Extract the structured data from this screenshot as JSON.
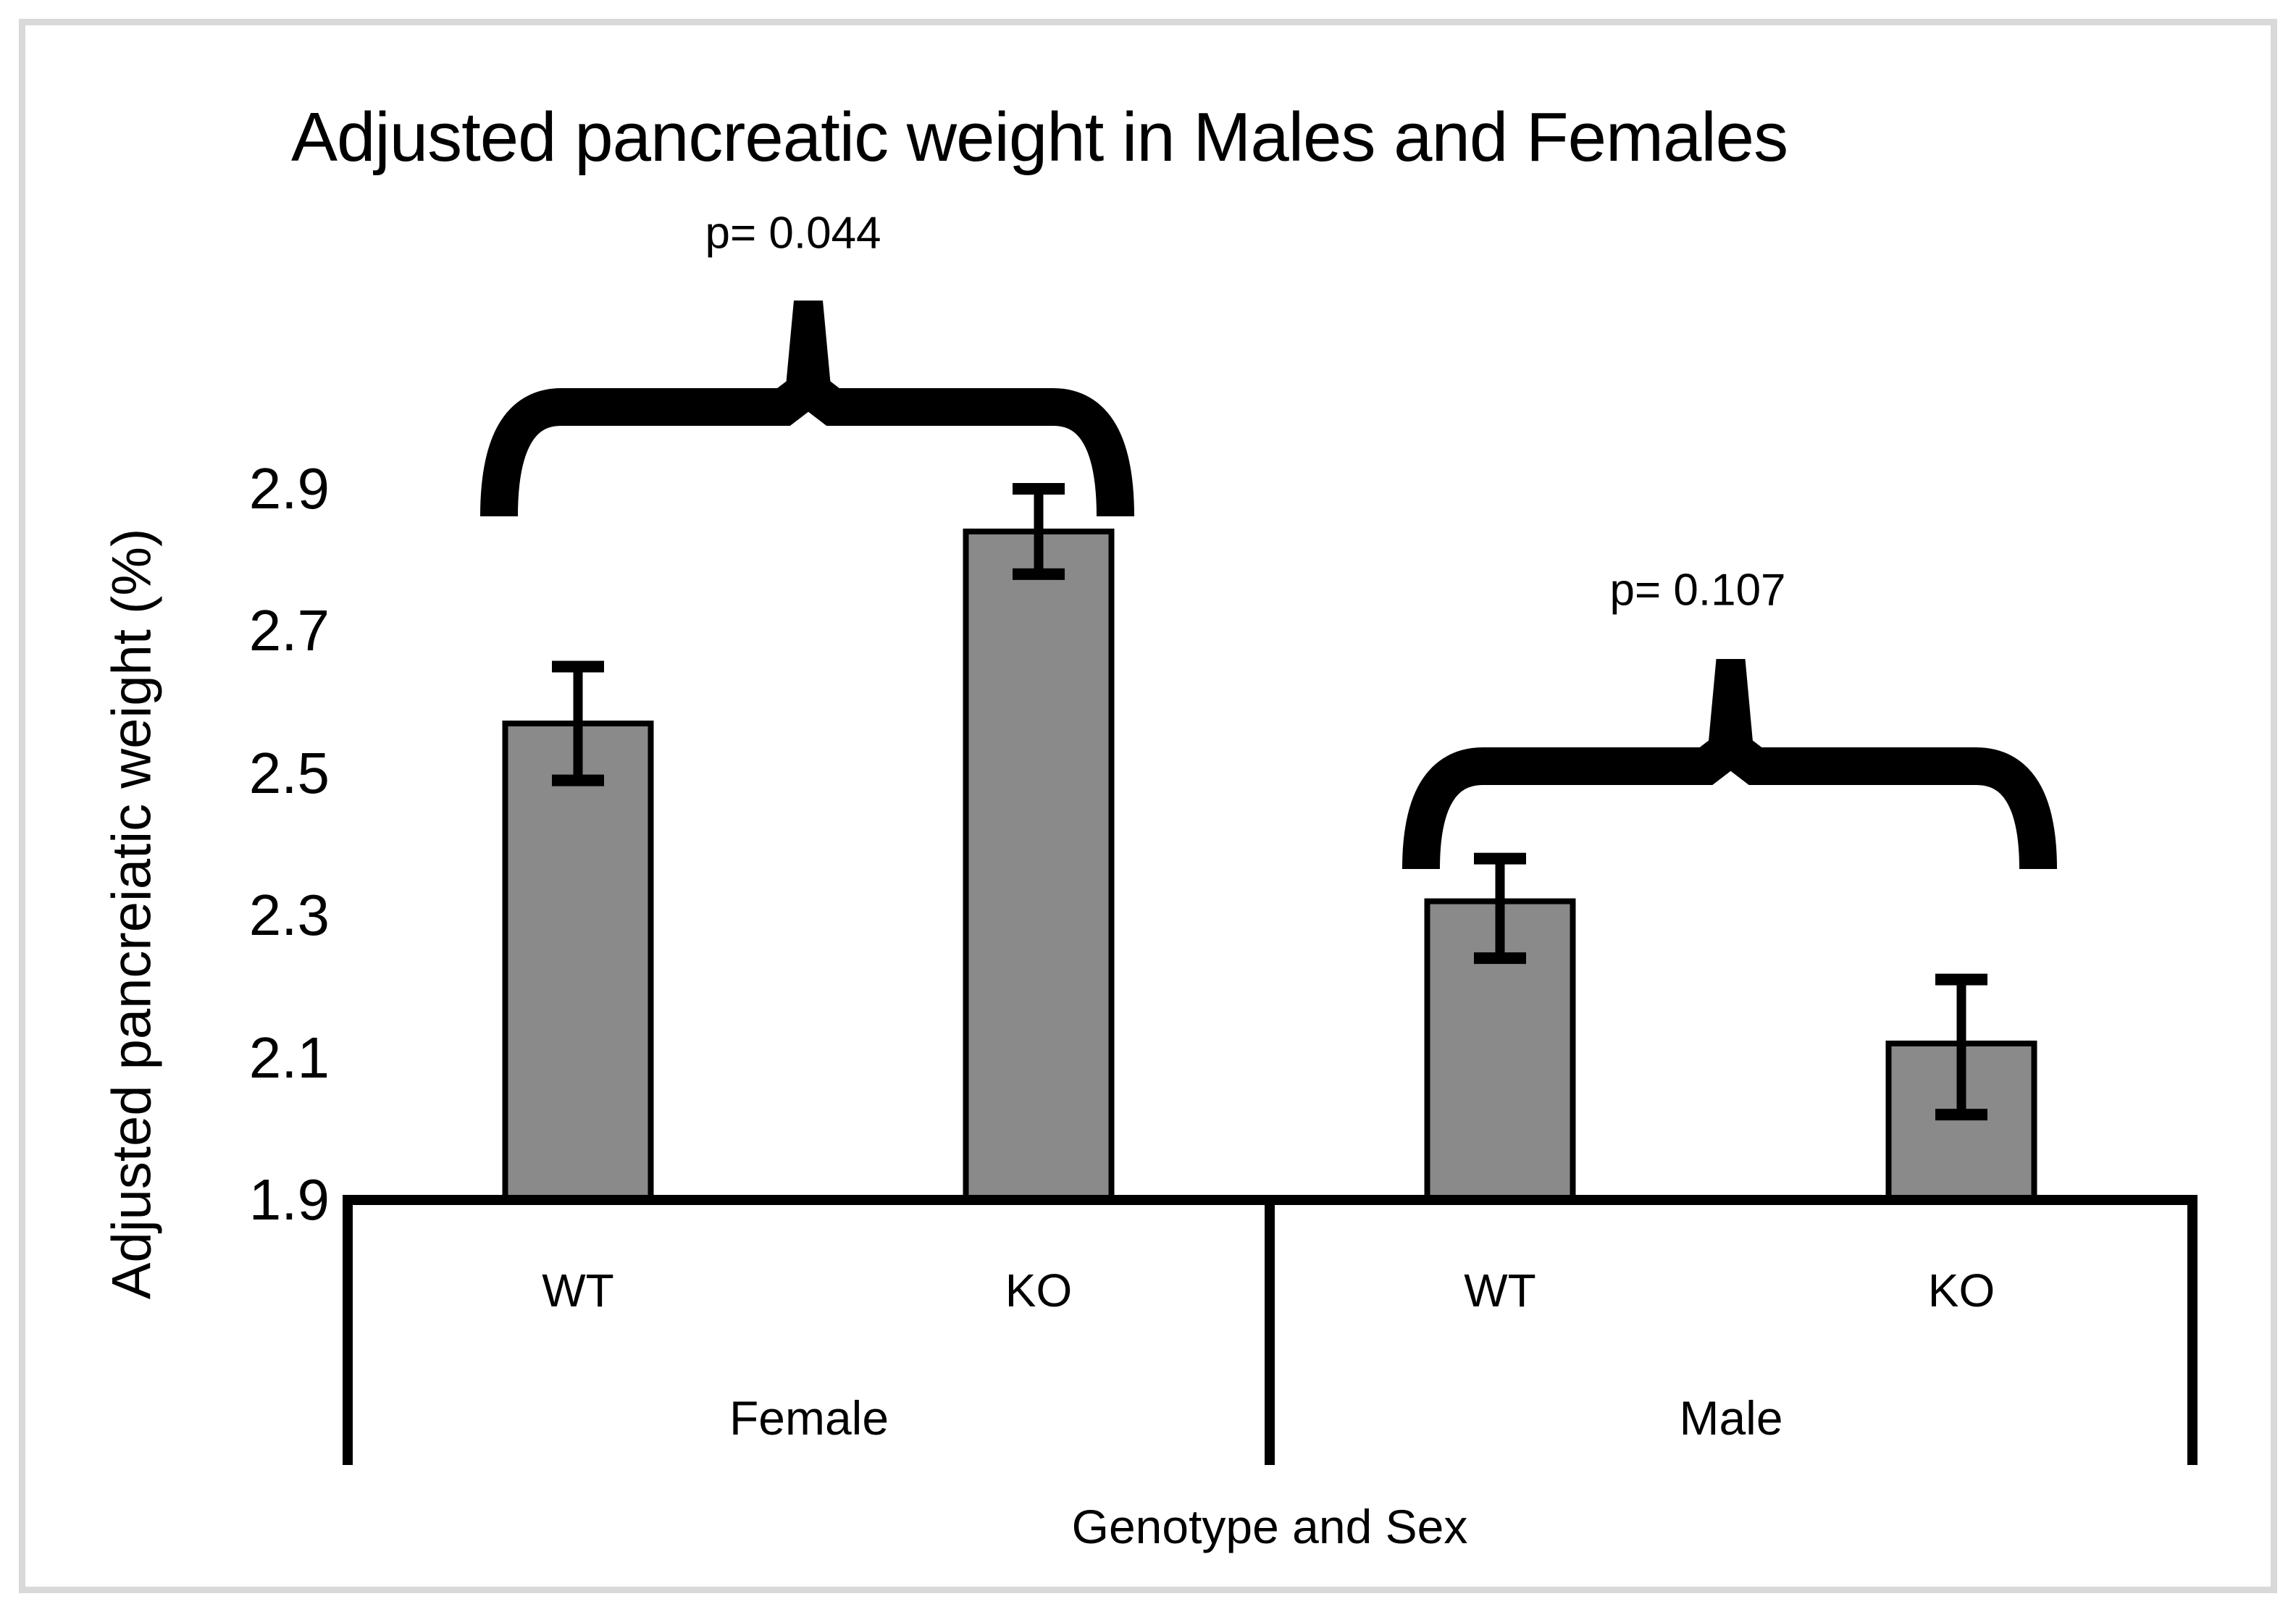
{
  "figure": {
    "background": "#ffffff",
    "border_color": "#d9d9d9"
  },
  "chart_data": {
    "type": "bar",
    "title": "Adjusted pancreatic weight in Males and Females",
    "xlabel": "Genotype and Sex",
    "ylabel": "Adjusted pancreiatic weight (%)",
    "ylim": [
      1.9,
      3.0
    ],
    "yticks": [
      "1.9",
      "2.1",
      "2.3",
      "2.5",
      "2.7",
      "2.9"
    ],
    "ytick_values": [
      1.9,
      2.1,
      2.3,
      2.5,
      2.7,
      2.9
    ],
    "grid": false,
    "legend": false,
    "bar_color": "#8a8a8a",
    "bar_edge_color": "#000000",
    "annotation_color": "#000000",
    "axis_color": "#000000",
    "groups": [
      {
        "label": "Female",
        "p_label": "p= 0.044",
        "bars": [
          {
            "label": "WT",
            "mean": 2.57,
            "err_high": 2.65,
            "err_low": 2.49
          },
          {
            "label": "KO",
            "mean": 2.84,
            "err_high": 2.9,
            "err_low": 2.78
          }
        ]
      },
      {
        "label": "Male",
        "p_label": "p= 0.107",
        "bars": [
          {
            "label": "WT",
            "mean": 2.32,
            "err_high": 2.38,
            "err_low": 2.24
          },
          {
            "label": "KO",
            "mean": 2.12,
            "err_high": 2.21,
            "err_low": 2.02
          }
        ]
      }
    ]
  }
}
